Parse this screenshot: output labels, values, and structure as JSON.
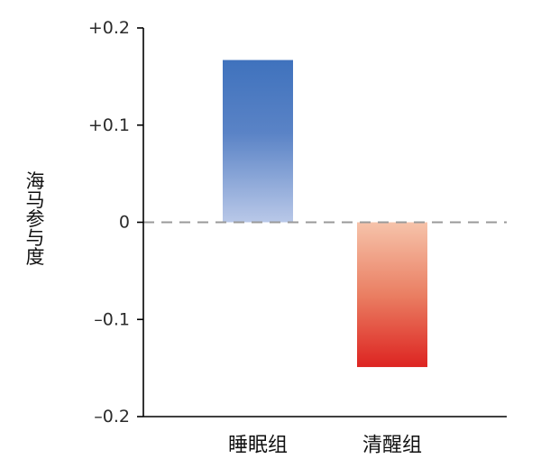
{
  "chart_data": {
    "type": "bar",
    "title": "",
    "xlabel": "",
    "ylabel": "海马参与度",
    "categories": [
      "睡眠组",
      "清醒组"
    ],
    "values": [
      0.167,
      -0.149
    ],
    "ylim": [
      -0.2,
      0.2
    ],
    "yticks": [
      0.2,
      0.1,
      0,
      -0.1,
      -0.2
    ],
    "ytick_labels": [
      "+0.2",
      "+0.1",
      "0",
      "–0.1",
      "–0.2"
    ],
    "zero_line": "dashed",
    "grid": false,
    "legend": "none",
    "colors": {
      "sleep_top": "#3f72bd",
      "sleep_bottom": "#b9c8e8",
      "wake_top": "#f6c3aa",
      "wake_bottom": "#dd2421",
      "zero_line": "#9a9a9a",
      "axis": "#000000"
    }
  }
}
